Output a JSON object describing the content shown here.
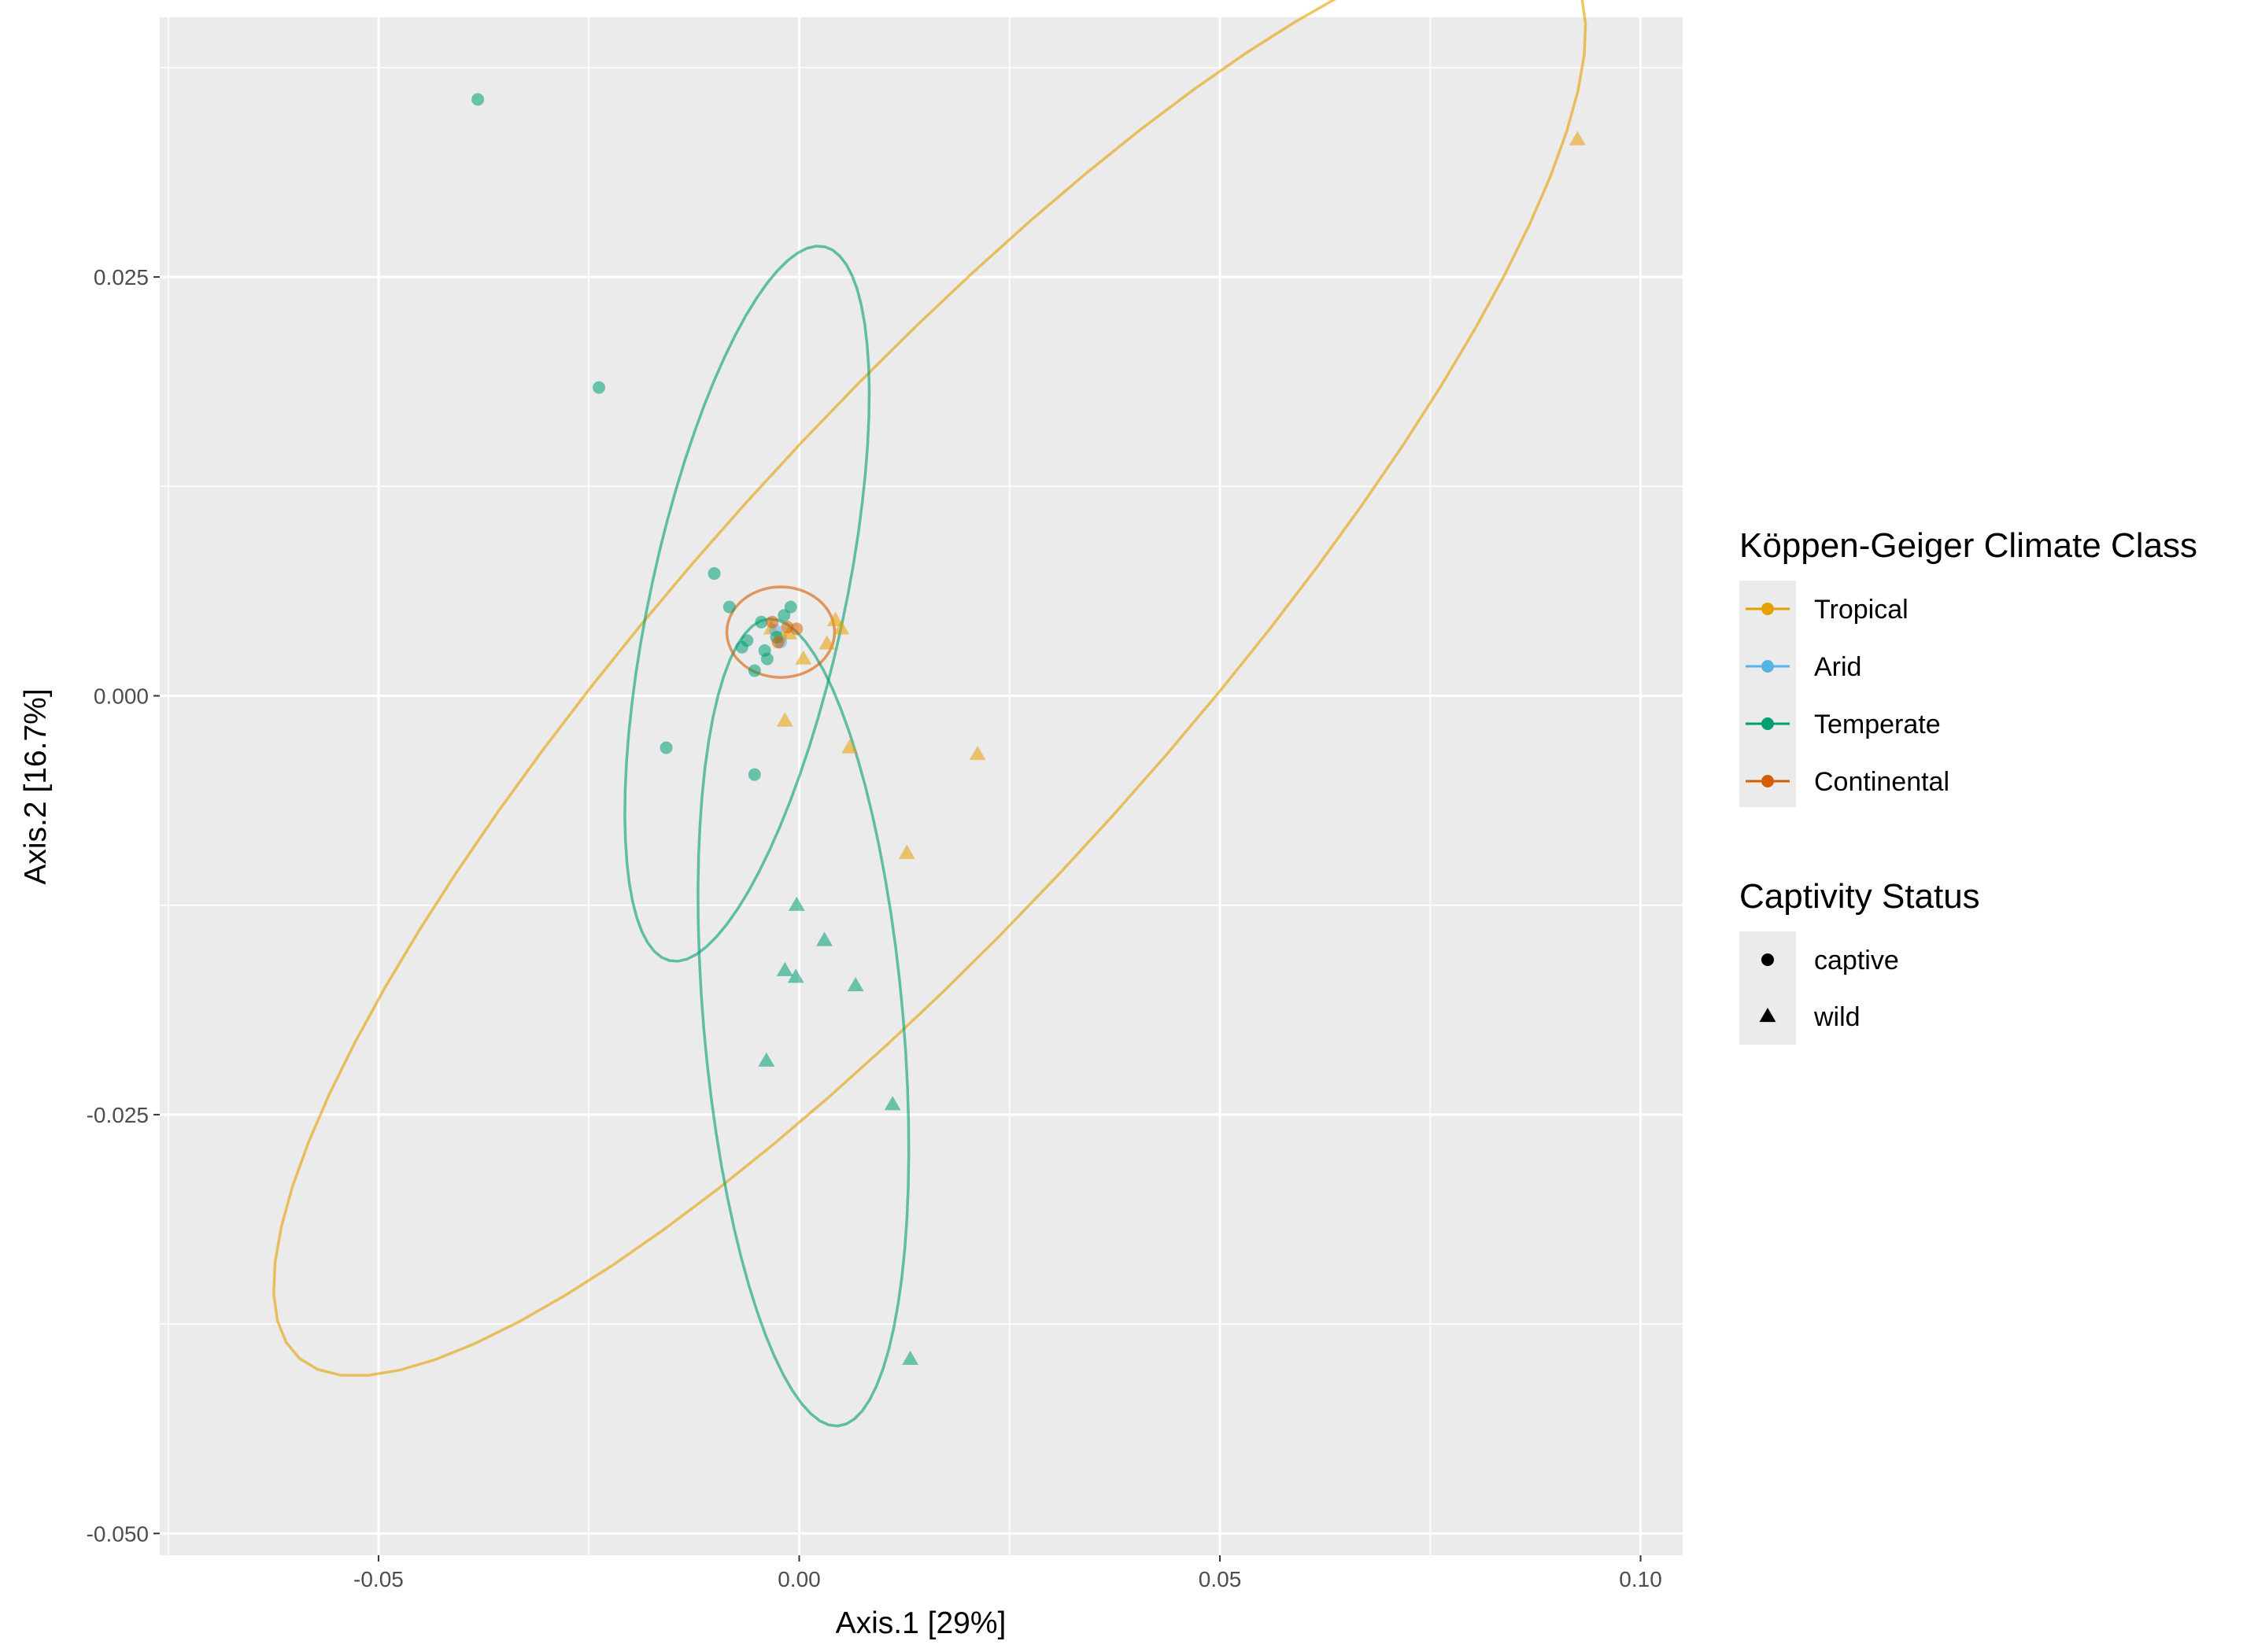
{
  "chart_data": {
    "type": "scatter",
    "xlabel": "Axis.1   [29%]",
    "ylabel": "Axis.2   [16.7%]",
    "xlim": [
      -0.076,
      0.105
    ],
    "ylim": [
      -0.0513,
      0.0405
    ],
    "x_ticks": [
      -0.05,
      0.0,
      0.05,
      0.1
    ],
    "x_tick_labels": [
      "-0.05",
      "0.00",
      "0.05",
      "0.10"
    ],
    "y_ticks": [
      -0.05,
      -0.025,
      0.0,
      0.025
    ],
    "y_tick_labels": [
      "-0.050",
      "-0.025",
      "0.000",
      "0.025"
    ],
    "grid": true,
    "legend_position": "right",
    "legends": [
      {
        "title": "Köppen-Geiger Climate Class",
        "kind": "color",
        "entries": [
          {
            "label": "Tropical",
            "color": "#E69F00"
          },
          {
            "label": "Arid",
            "color": "#56B4E9"
          },
          {
            "label": "Temperate",
            "color": "#009E73"
          },
          {
            "label": "Continental",
            "color": "#D55E00"
          }
        ]
      },
      {
        "title": "Captivity Status",
        "kind": "shape",
        "entries": [
          {
            "label": "captive",
            "shape": "circle"
          },
          {
            "label": "wild",
            "shape": "triangle"
          }
        ]
      }
    ],
    "series": [
      {
        "name": "Tropical",
        "color": "#E69F00",
        "points": [
          {
            "x": 0.0925,
            "y": 0.0332,
            "shape": "triangle"
          },
          {
            "x": 0.0212,
            "y": -0.0035,
            "shape": "triangle"
          },
          {
            "x": 0.0128,
            "y": -0.0094,
            "shape": "triangle"
          },
          {
            "x": 0.006,
            "y": -0.0031,
            "shape": "triangle"
          },
          {
            "x": 0.0043,
            "y": 0.0045,
            "shape": "triangle"
          },
          {
            "x": 0.005,
            "y": 0.004,
            "shape": "triangle"
          },
          {
            "x": 0.0033,
            "y": 0.0031,
            "shape": "triangle"
          },
          {
            "x": 0.0005,
            "y": 0.0022,
            "shape": "triangle"
          },
          {
            "x": -0.0017,
            "y": -0.0015,
            "shape": "triangle"
          },
          {
            "x": -0.0012,
            "y": 0.0037,
            "shape": "triangle"
          },
          {
            "x": -0.0033,
            "y": 0.004,
            "shape": "triangle"
          },
          {
            "x": -0.0022,
            "y": 0.0035,
            "shape": "circle"
          }
        ],
        "ellipse": {
          "center": [
            0.0155,
            0.0022
          ],
          "semi_major": 0.087,
          "semi_minor": 0.0185,
          "angle_deg": 27
        }
      },
      {
        "name": "Arid",
        "color": "#56B4E9",
        "points": [
          {
            "x": -0.0028,
            "y": 0.0039,
            "shape": "circle"
          },
          {
            "x": -0.0022,
            "y": 0.0032,
            "shape": "circle"
          }
        ]
      },
      {
        "name": "Temperate",
        "color": "#009E73",
        "points": [
          {
            "x": -0.0382,
            "y": 0.0356,
            "shape": "circle"
          },
          {
            "x": -0.0238,
            "y": 0.0184,
            "shape": "circle"
          },
          {
            "x": -0.0101,
            "y": 0.0073,
            "shape": "circle"
          },
          {
            "x": -0.0158,
            "y": -0.0031,
            "shape": "circle"
          },
          {
            "x": -0.0053,
            "y": -0.0047,
            "shape": "circle"
          },
          {
            "x": -0.0083,
            "y": 0.0053,
            "shape": "circle"
          },
          {
            "x": -0.0045,
            "y": 0.0044,
            "shape": "circle"
          },
          {
            "x": -0.0062,
            "y": 0.0033,
            "shape": "circle"
          },
          {
            "x": -0.0068,
            "y": 0.0029,
            "shape": "circle"
          },
          {
            "x": -0.0041,
            "y": 0.0027,
            "shape": "circle"
          },
          {
            "x": -0.0038,
            "y": 0.0022,
            "shape": "circle"
          },
          {
            "x": -0.0053,
            "y": 0.0015,
            "shape": "circle"
          },
          {
            "x": -0.0018,
            "y": 0.0048,
            "shape": "circle"
          },
          {
            "x": -0.001,
            "y": 0.0053,
            "shape": "circle"
          },
          {
            "x": -0.0027,
            "y": 0.0035,
            "shape": "circle"
          },
          {
            "x": -0.0003,
            "y": -0.0125,
            "shape": "triangle"
          },
          {
            "x": 0.003,
            "y": -0.0146,
            "shape": "triangle"
          },
          {
            "x": -0.0017,
            "y": -0.0164,
            "shape": "triangle"
          },
          {
            "x": -0.0004,
            "y": -0.0168,
            "shape": "triangle"
          },
          {
            "x": 0.0067,
            "y": -0.0173,
            "shape": "triangle"
          },
          {
            "x": -0.0039,
            "y": -0.0218,
            "shape": "triangle"
          },
          {
            "x": 0.0111,
            "y": -0.0244,
            "shape": "triangle"
          },
          {
            "x": 0.0132,
            "y": -0.0396,
            "shape": "triangle"
          }
        ],
        "ellipses": [
          {
            "center": [
              -0.0062,
              0.0055
            ],
            "semi_major": 0.0235,
            "semi_minor": 0.0107,
            "angle_deg": 62
          },
          {
            "center": [
              0.0005,
              -0.0195
            ],
            "semi_major": 0.0245,
            "semi_minor": 0.0117,
            "angle_deg": -78
          }
        ]
      },
      {
        "name": "Continental",
        "color": "#D55E00",
        "points": [
          {
            "x": -0.0032,
            "y": 0.0044,
            "shape": "circle"
          },
          {
            "x": -0.0014,
            "y": 0.0041,
            "shape": "circle"
          },
          {
            "x": -0.0003,
            "y": 0.004,
            "shape": "circle"
          },
          {
            "x": -0.0025,
            "y": 0.0032,
            "shape": "circle"
          }
        ],
        "ellipse": {
          "center": [
            -0.0022,
            0.0038
          ],
          "semi_major": 0.0064,
          "semi_minor": 0.0027,
          "angle_deg": 0
        }
      }
    ]
  }
}
